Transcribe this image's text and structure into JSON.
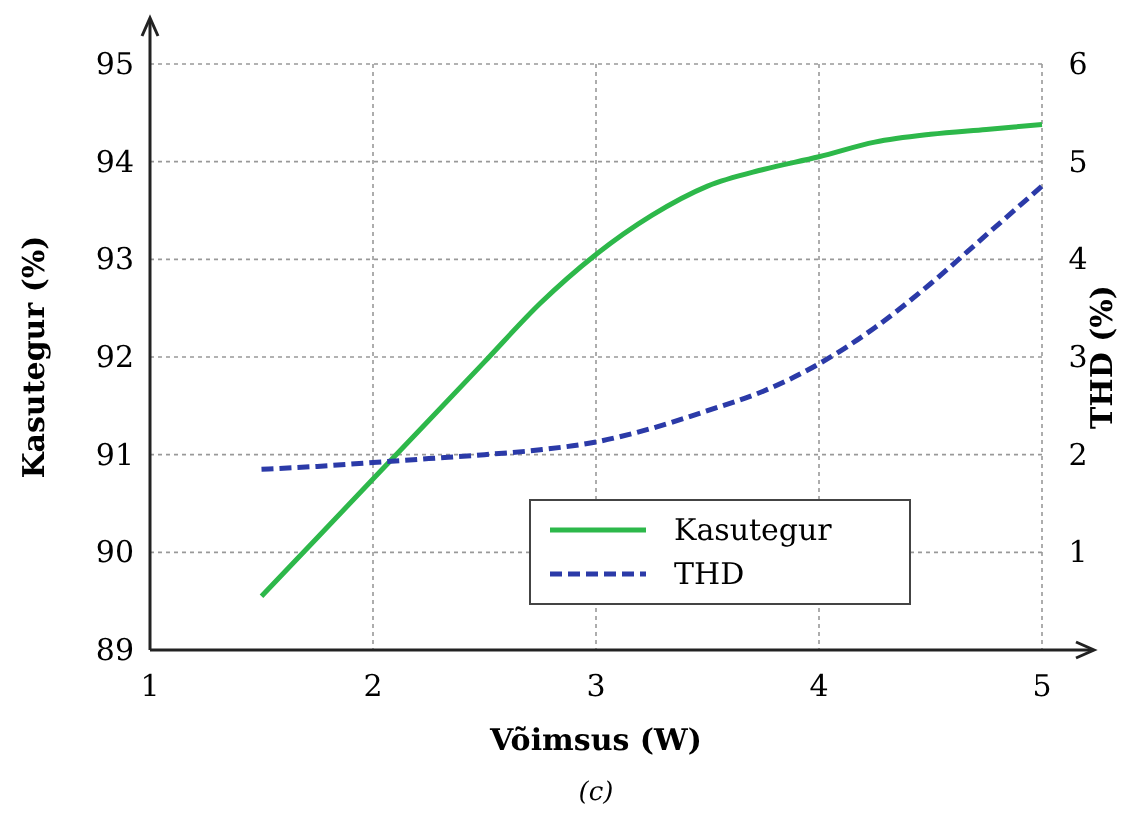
{
  "chart_data": {
    "type": "line",
    "xlabel": "Võimsus (W)",
    "ylabel": "Kasutegur (%)",
    "y2label": "THD (%)",
    "annotations": [
      "(c)"
    ],
    "xlim": [
      1,
      5
    ],
    "xticks": [
      1,
      2,
      3,
      4,
      5
    ],
    "ylim": [
      89,
      95
    ],
    "yticks": [
      89,
      90,
      91,
      92,
      93,
      94,
      95
    ],
    "y2lim": [
      0,
      6
    ],
    "y2ticks": [
      1,
      2,
      3,
      4,
      5,
      6
    ],
    "grid": true,
    "legend": "bottom right",
    "series": [
      {
        "name": "Kasutegur",
        "color": "#2db84a",
        "line_style": "solid",
        "x": [
          1.5,
          1.75,
          2,
          2.25,
          2.5,
          2.75,
          3,
          3.25,
          3.5,
          3.75,
          4,
          4.25,
          4.5,
          4.75,
          5
        ],
        "values": [
          89.55,
          90.15,
          90.75,
          91.35,
          91.95,
          92.55,
          93.05,
          93.45,
          93.75,
          93.92,
          94.05,
          94.2,
          94.28,
          94.33,
          94.38
        ]
      },
      {
        "name": "THD",
        "color": "#2b3aa8",
        "line_style": "dashed",
        "axis": "y2",
        "x": [
          1.5,
          1.75,
          2,
          2.25,
          2.5,
          2.75,
          3,
          3.25,
          3.5,
          3.75,
          4,
          4.25,
          4.5,
          4.75,
          5
        ],
        "values": [
          1.85,
          1.88,
          1.92,
          1.96,
          2.0,
          2.05,
          2.13,
          2.27,
          2.45,
          2.65,
          2.93,
          3.3,
          3.75,
          4.25,
          4.75
        ]
      }
    ]
  }
}
